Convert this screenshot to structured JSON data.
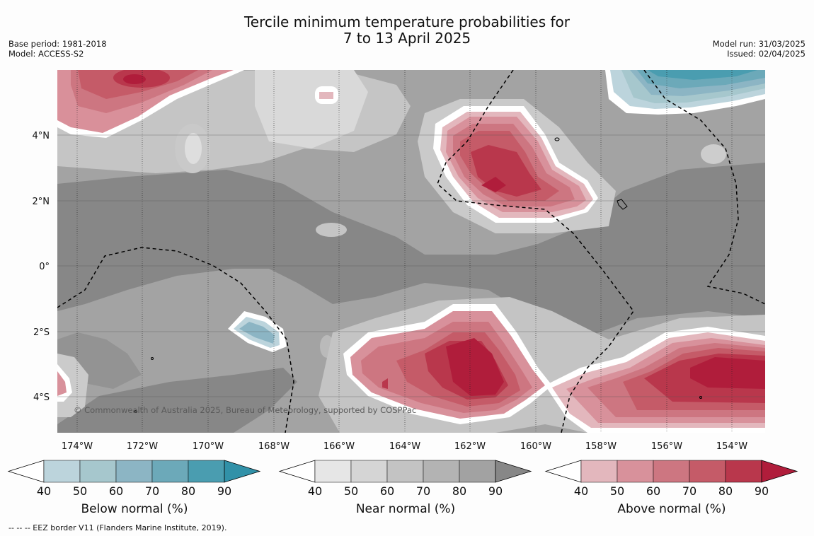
{
  "title": {
    "line1": "Tercile minimum temperature probabilities for",
    "line2": "7 to 13 April 2025"
  },
  "meta_left": {
    "base_period": "Base period: 1981-2018",
    "model": "Model: ACCESS-S2"
  },
  "meta_right": {
    "model_run": "Model run: 31/03/2025",
    "issued": "Issued: 02/04/2025"
  },
  "map": {
    "lat_labels": [
      "4°N",
      "2°N",
      "0°",
      "2°S",
      "4°S"
    ],
    "lon_labels": [
      "174°W",
      "172°W",
      "170°W",
      "168°W",
      "166°W",
      "164°W",
      "162°W",
      "160°W",
      "158°W",
      "156°W",
      "154°W"
    ],
    "copyright": "© Commonwealth of Australia 2025, Bureau of Meteorology, supported by COSPPac",
    "colors": {
      "background_gray": "#a3a3a3",
      "dark_gray": "#868686",
      "light_gray": "#c5c5c5",
      "lighter_gray": "#d8d8d8",
      "red_levels": [
        "#e1b6bb",
        "#d9909a",
        "#cf7580",
        "#c55a67",
        "#b9364c",
        "#b01d3b"
      ],
      "blue_levels": [
        "#b9d3db",
        "#a5c6cc",
        "#8bb4c2",
        "#6aa9b9",
        "#4a9fb1",
        "#3390a8"
      ]
    }
  },
  "colorbars": [
    {
      "name": "Below normal (%)",
      "ticks": [
        "40",
        "50",
        "60",
        "70",
        "80",
        "90"
      ],
      "colors": [
        "#ffffff",
        "#bcd4dc",
        "#a6c7cd",
        "#8cb5c4",
        "#6ca9b9",
        "#4a9db0",
        "#3191a8"
      ]
    },
    {
      "name": "Near normal (%)",
      "ticks": [
        "40",
        "50",
        "60",
        "70",
        "80",
        "90"
      ],
      "colors": [
        "#ffffff",
        "#e6e6e6",
        "#d5d5d5",
        "#c3c3c3",
        "#b3b3b3",
        "#a2a2a2",
        "#878787"
      ]
    },
    {
      "name": "Above normal (%)",
      "ticks": [
        "40",
        "50",
        "60",
        "70",
        "80",
        "90"
      ],
      "colors": [
        "#ffffff",
        "#e3b7bd",
        "#d8919b",
        "#cd7681",
        "#c55b68",
        "#b9374c",
        "#b01d3b"
      ]
    }
  ],
  "footnote": "-- -- -- EEZ border V11 (Flanders Marine Institute, 2019)."
}
